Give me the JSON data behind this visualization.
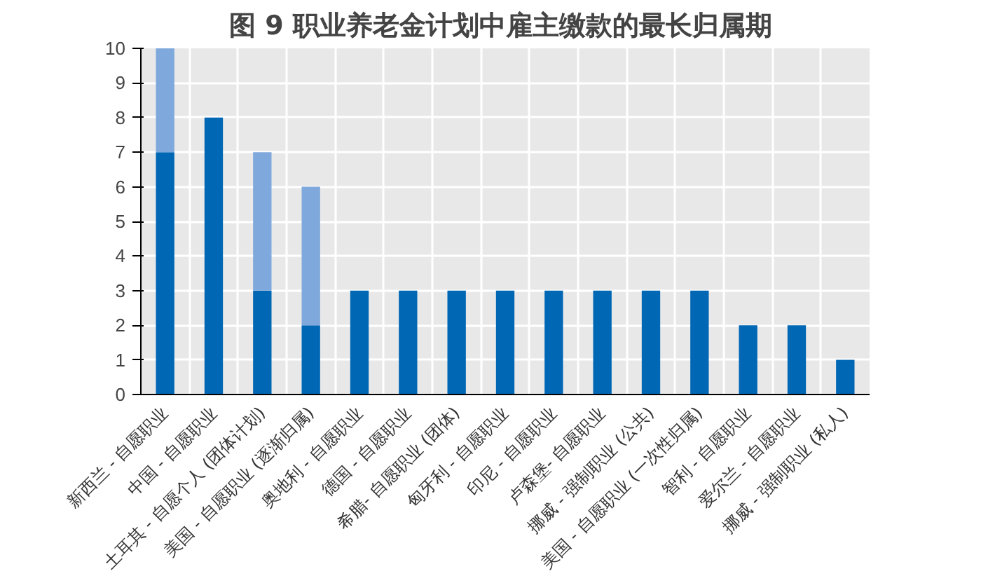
{
  "chart_data": {
    "type": "bar",
    "title": "图 9  职业养老金计划中雇主缴款的最长归属期",
    "categories": [
      "新西兰 - 自愿职业",
      "中国 - 自愿职业",
      "土耳其 - 自愿个人 (团体计划)",
      "美国 - 自愿职业 (逐渐归属)",
      "奥地利 - 自愿职业",
      "德国 - 自愿职业",
      "希腊- 自愿职业 (团体)",
      "匈牙利 - 自愿职业",
      "印尼 - 自愿职业",
      "卢森堡- 自愿职业",
      "挪威 - 强制职业 (公共)",
      "美国 - 自愿职业 (一次性归属)",
      "智利 - 自愿职业",
      "爱尔兰 - 自愿职业",
      "挪威 - 强制职业 (私人)"
    ],
    "stacked": true,
    "series": [
      {
        "color": "#0067b4",
        "values": [
          7,
          8,
          3,
          2,
          3,
          3,
          3,
          3,
          3,
          3,
          3,
          3,
          2,
          2,
          1
        ]
      },
      {
        "color": "#7fa8dc",
        "values": [
          3,
          0,
          4,
          4,
          0,
          0,
          0,
          0,
          0,
          0,
          0,
          0,
          0,
          0,
          0
        ]
      }
    ],
    "ylim": [
      0,
      10
    ],
    "yticks": [
      0,
      1,
      2,
      3,
      4,
      5,
      6,
      7,
      8,
      9,
      10
    ],
    "grid": true
  }
}
